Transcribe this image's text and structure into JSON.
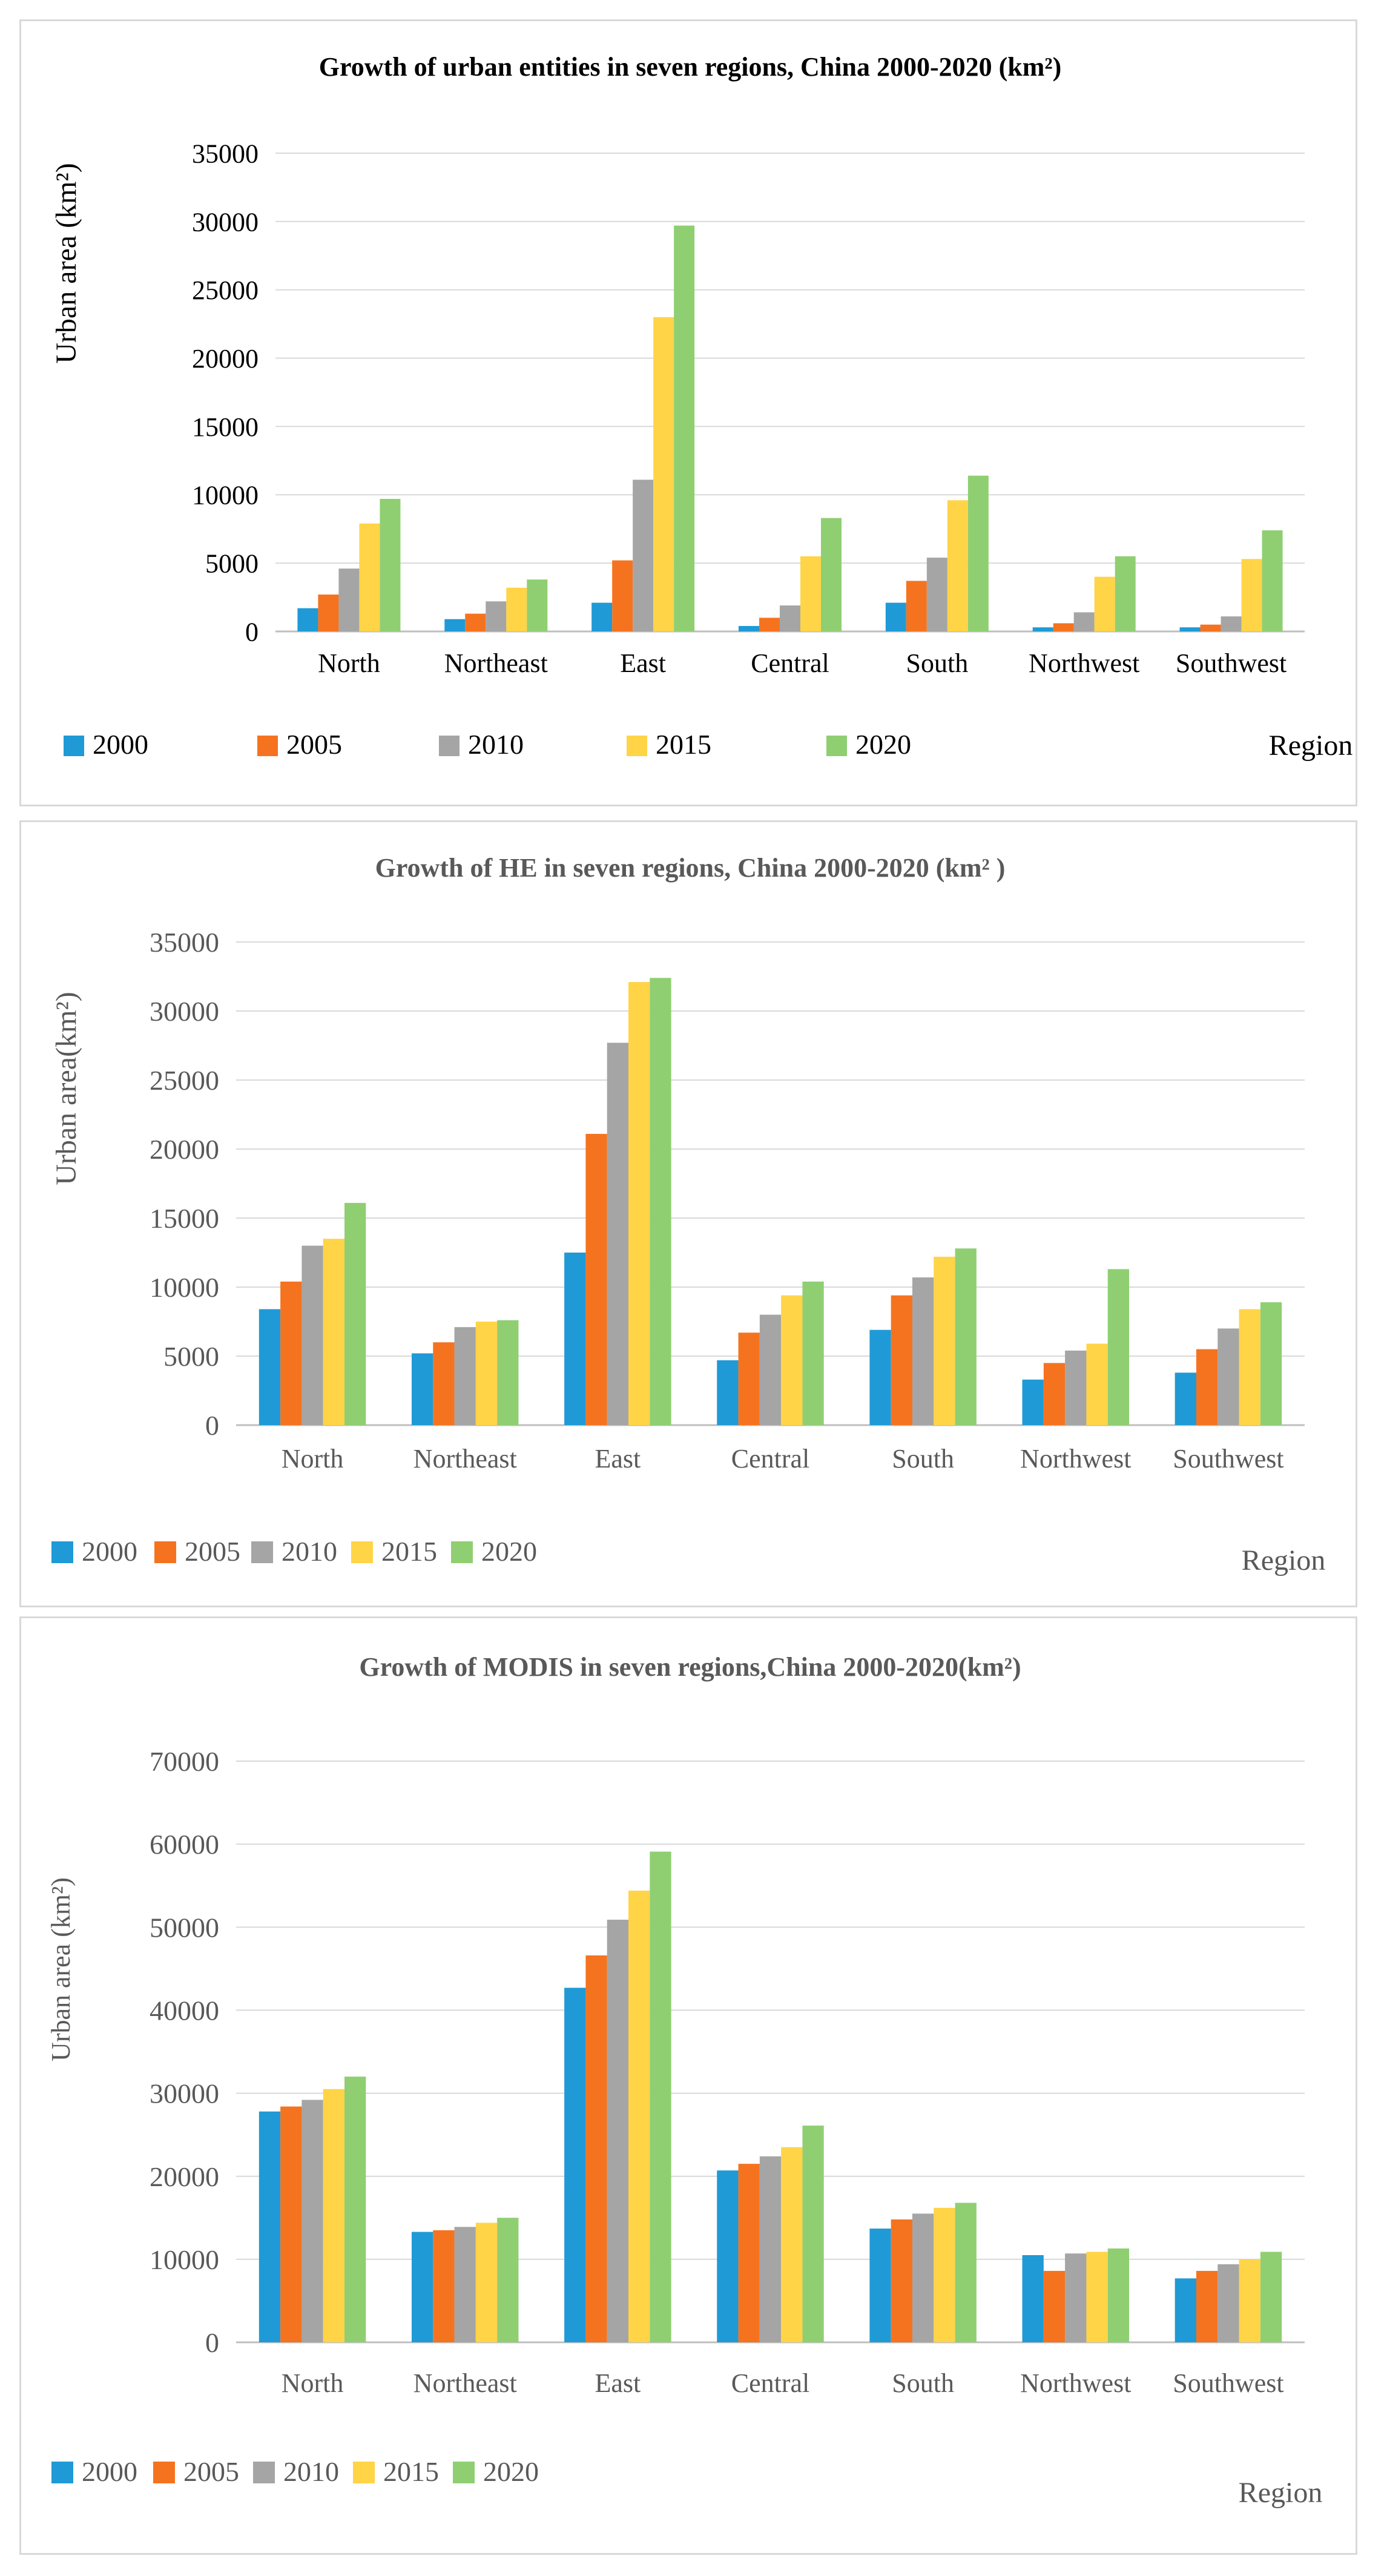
{
  "colors": {
    "series": [
      "#1f9ad6",
      "#f5731f",
      "#a5a5a5",
      "#ffd447",
      "#8fcf72"
    ],
    "grid": "#d9d9d9",
    "axis": "#bfbfbf"
  },
  "chart_data": [
    {
      "type": "bar",
      "title": "Growth of urban entities in seven regions, China 2000-2020 (km²)",
      "ylabel": "Urban area (km²)",
      "xlabel": "Region",
      "ylim": [
        0,
        35000
      ],
      "yticks": [
        "0",
        "5000",
        "10000",
        "15000",
        "20000",
        "25000",
        "30000",
        "35000"
      ],
      "categories": [
        "North",
        "Northeast",
        "East",
        "Central",
        "South",
        "Northwest",
        "Southwest"
      ],
      "legend_position": "bottom",
      "series": [
        {
          "name": "2000",
          "values": [
            1700,
            900,
            2100,
            400,
            2100,
            300,
            300
          ]
        },
        {
          "name": "2005",
          "values": [
            2700,
            1300,
            5200,
            1000,
            3700,
            600,
            500
          ]
        },
        {
          "name": "2010",
          "values": [
            4600,
            2200,
            11100,
            1900,
            5400,
            1400,
            1100
          ]
        },
        {
          "name": "2015",
          "values": [
            7900,
            3200,
            23000,
            5500,
            9600,
            4000,
            5300
          ]
        },
        {
          "name": "2020",
          "values": [
            9700,
            3800,
            29700,
            8300,
            11400,
            5500,
            7400
          ]
        }
      ]
    },
    {
      "type": "bar",
      "title": "Growth  of HE in seven regions, China 2000-2020 (km² )",
      "ylabel": "Urban area(km²)",
      "xlabel": "Region",
      "ylim": [
        0,
        35000
      ],
      "yticks": [
        "0",
        "5000",
        "10000",
        "15000",
        "20000",
        "25000",
        "30000",
        "35000"
      ],
      "categories": [
        "North",
        "Northeast",
        "East",
        "Central",
        "South",
        "Northwest",
        "Southwest"
      ],
      "legend_position": "bottom",
      "series": [
        {
          "name": "2000",
          "values": [
            8400,
            5200,
            12500,
            4700,
            6900,
            3300,
            3800
          ]
        },
        {
          "name": "2005",
          "values": [
            10400,
            6000,
            21100,
            6700,
            9400,
            4500,
            5500
          ]
        },
        {
          "name": "2010",
          "values": [
            13000,
            7100,
            27700,
            8000,
            10700,
            5400,
            7000
          ]
        },
        {
          "name": "2015",
          "values": [
            13500,
            7500,
            32100,
            9400,
            12200,
            5900,
            8400
          ]
        },
        {
          "name": "2020",
          "values": [
            16100,
            7600,
            32400,
            10400,
            12800,
            11300,
            8900
          ]
        }
      ]
    },
    {
      "type": "bar",
      "title": "Growth of MODIS in seven regions,China 2000-2020(km²)",
      "ylabel": "Urban area (km²)",
      "xlabel": "Region",
      "ylim": [
        0,
        70000
      ],
      "yticks": [
        "0",
        "10000",
        "20000",
        "30000",
        "40000",
        "50000",
        "60000",
        "70000"
      ],
      "categories": [
        "North",
        "Northeast",
        "East",
        "Central",
        "South",
        "Northwest",
        "Southwest"
      ],
      "legend_position": "bottom",
      "series": [
        {
          "name": "2000",
          "values": [
            27800,
            13300,
            42700,
            20700,
            13700,
            10500,
            7700
          ]
        },
        {
          "name": "2005",
          "values": [
            28400,
            13500,
            46600,
            21500,
            14800,
            8600,
            8600
          ]
        },
        {
          "name": "2010",
          "values": [
            29200,
            13900,
            50900,
            22400,
            15500,
            10700,
            9400
          ]
        },
        {
          "name": "2015",
          "values": [
            30500,
            14400,
            54400,
            23500,
            16200,
            10900,
            10000
          ]
        },
        {
          "name": "2020",
          "values": [
            32000,
            15000,
            59100,
            26100,
            16800,
            11300,
            10900
          ]
        }
      ]
    }
  ]
}
